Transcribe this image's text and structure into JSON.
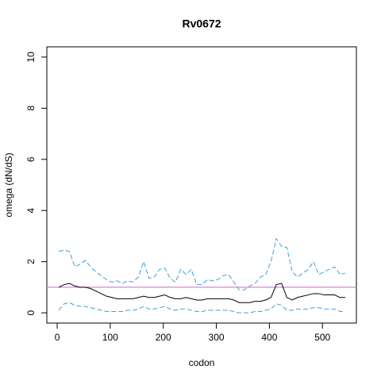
{
  "chart_data": {
    "type": "line",
    "title": "Rv0672",
    "x_label": "codon",
    "y_label": "omega (dN/dS)",
    "x": [
      3,
      13,
      23,
      33,
      43,
      53,
      63,
      73,
      83,
      93,
      103,
      113,
      123,
      133,
      143,
      153,
      163,
      173,
      183,
      193,
      203,
      213,
      223,
      233,
      243,
      253,
      263,
      273,
      283,
      293,
      303,
      313,
      323,
      333,
      343,
      353,
      363,
      373,
      383,
      393,
      403,
      413,
      423,
      433,
      443,
      453,
      463,
      473,
      483,
      493,
      503,
      513,
      523,
      533,
      543
    ],
    "series": [
      {
        "name": "omega",
        "color": "#000000",
        "dashed": false,
        "values": [
          1.0,
          1.1,
          1.15,
          1.05,
          1.0,
          1.0,
          0.95,
          0.85,
          0.75,
          0.65,
          0.6,
          0.55,
          0.55,
          0.55,
          0.55,
          0.6,
          0.65,
          0.6,
          0.6,
          0.65,
          0.7,
          0.6,
          0.55,
          0.55,
          0.6,
          0.55,
          0.5,
          0.5,
          0.55,
          0.55,
          0.55,
          0.55,
          0.55,
          0.5,
          0.4,
          0.4,
          0.4,
          0.45,
          0.45,
          0.5,
          0.6,
          1.1,
          1.15,
          0.6,
          0.5,
          0.6,
          0.65,
          0.7,
          0.75,
          0.75,
          0.7,
          0.7,
          0.7,
          0.6,
          0.6
        ]
      },
      {
        "name": "upper",
        "color": "#3aa0dd",
        "dashed": true,
        "values": [
          2.4,
          2.45,
          2.4,
          1.8,
          1.9,
          2.05,
          1.8,
          1.6,
          1.45,
          1.3,
          1.2,
          1.25,
          1.15,
          1.25,
          1.2,
          1.4,
          2.0,
          1.35,
          1.4,
          1.7,
          1.75,
          1.35,
          1.2,
          1.7,
          1.5,
          1.7,
          1.1,
          1.1,
          1.3,
          1.25,
          1.3,
          1.45,
          1.5,
          1.2,
          0.9,
          0.9,
          1.05,
          1.15,
          1.4,
          1.5,
          2.0,
          2.9,
          2.6,
          2.55,
          1.6,
          1.4,
          1.55,
          1.7,
          2.0,
          1.5,
          1.6,
          1.7,
          1.8,
          1.5,
          1.55
        ]
      },
      {
        "name": "lower",
        "color": "#3aa0dd",
        "dashed": true,
        "values": [
          0.1,
          0.35,
          0.4,
          0.3,
          0.25,
          0.25,
          0.2,
          0.15,
          0.1,
          0.05,
          0.05,
          0.05,
          0.05,
          0.1,
          0.1,
          0.15,
          0.25,
          0.15,
          0.15,
          0.2,
          0.25,
          0.15,
          0.1,
          0.15,
          0.15,
          0.1,
          0.05,
          0.05,
          0.1,
          0.1,
          0.1,
          0.1,
          0.1,
          0.05,
          0.0,
          0.0,
          0.0,
          0.05,
          0.05,
          0.1,
          0.15,
          0.35,
          0.3,
          0.1,
          0.1,
          0.15,
          0.15,
          0.15,
          0.2,
          0.2,
          0.15,
          0.15,
          0.15,
          0.05,
          0.05
        ]
      }
    ],
    "reference_line": 1,
    "reference_color": "#cc66cc",
    "xlim": [
      -19.5,
      564
    ],
    "xticks": [
      0,
      100,
      200,
      300,
      400,
      500
    ],
    "ylim": [
      -0.4,
      10.4
    ],
    "yticks": [
      0,
      2,
      4,
      6,
      8,
      10
    ]
  }
}
